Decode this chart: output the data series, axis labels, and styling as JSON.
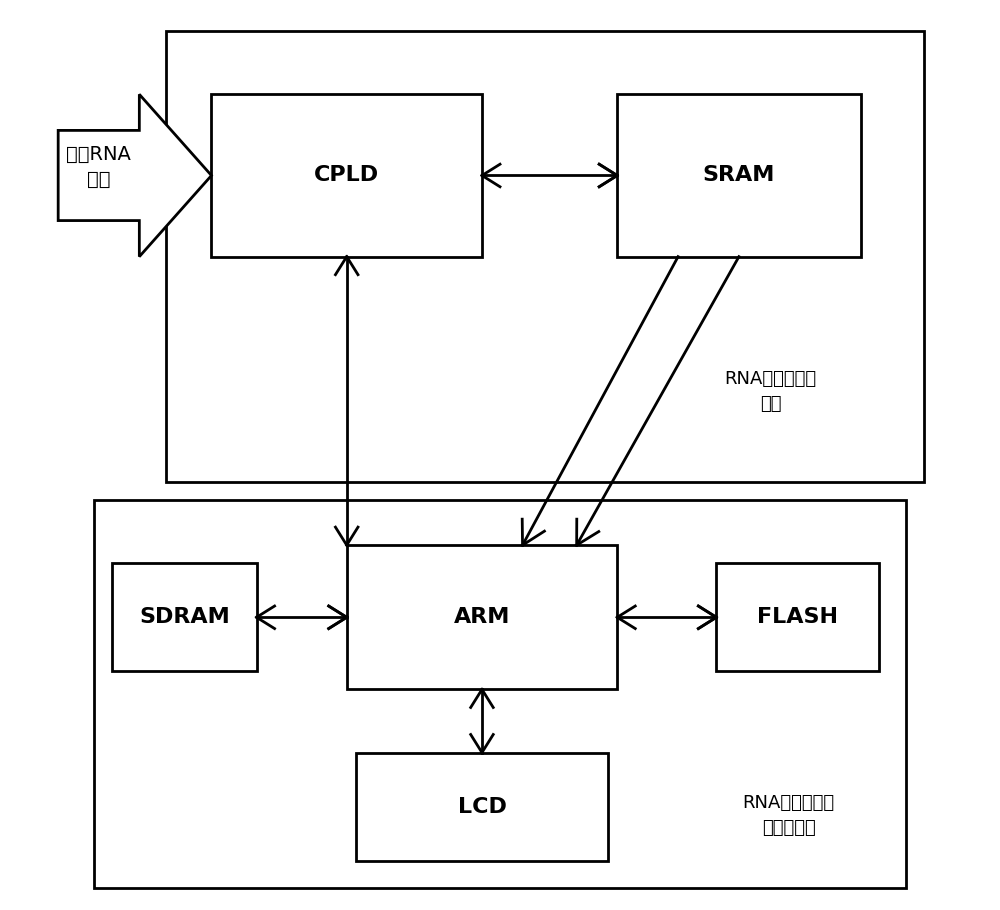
{
  "bg_color": "#ffffff",
  "line_color": "#000000",
  "input_label": "输入RNA\n序列",
  "cpld_label": "CPLD",
  "sram_label": "SRAM",
  "arm_label": "ARM",
  "sdram_label": "SDRAM",
  "flash_label": "FLASH",
  "lcd_label": "LCD",
  "module1_label": "RNA序列预处理\n模块",
  "module2_label": "RNA序列二级结\n构预测模块",
  "font_size_box": 16,
  "font_size_module": 13,
  "font_size_input": 14
}
